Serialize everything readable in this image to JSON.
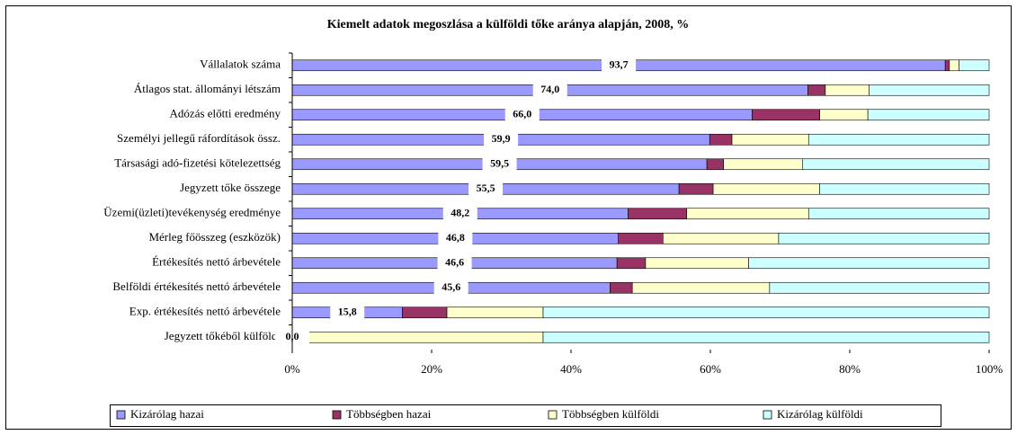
{
  "chart_data": {
    "type": "bar",
    "orientation": "horizontal",
    "stacked": true,
    "title": "Kiemelt adatok megoszlása a külföldi tőke aránya alapján, 2008, %",
    "categories": [
      "Vállalatok száma",
      "Átlagos stat. állományi létszám",
      "Adózás előtti eredmény",
      "Személyi jellegű ráfordítások össz.",
      "Társasági adó-fizetési kötelezettség",
      "Jegyzett tőke összege",
      "Üzemi(üzleti)tevékenység eredménye",
      "Mérleg főösszeg (eszközök)",
      "Értékesítés nettó árbevétele",
      "Belföldi értékesítés nettó árbevétele",
      "Exp. értékesítés nettó árbevétele",
      "Jegyzett tőkéből külföldi"
    ],
    "series": [
      {
        "name": "Kizárólag hazai",
        "color": "#9999ff",
        "values": [
          93.7,
          74.0,
          66.0,
          59.9,
          59.5,
          55.5,
          48.2,
          46.8,
          46.6,
          45.6,
          15.8,
          0.0
        ],
        "value_labels": [
          "93,7",
          "74,0",
          "66,0",
          "59,9",
          "59,5",
          "55,5",
          "48,2",
          "46,8",
          "46,6",
          "45,6",
          "15,8",
          "0,0"
        ]
      },
      {
        "name": "Többségben hazai",
        "color": "#993366",
        "values": [
          0.6,
          2.5,
          9.7,
          3.2,
          2.4,
          4.9,
          8.4,
          6.4,
          4.1,
          3.2,
          6.4,
          0
        ]
      },
      {
        "name": "Többségben külföldi",
        "color": "#ffffcc",
        "values": [
          1.4,
          6.3,
          6.9,
          11.0,
          11.3,
          15.3,
          17.5,
          16.6,
          14.8,
          19.7,
          13.8,
          36.0
        ]
      },
      {
        "name": "Kizárólag külföldi",
        "color": "#ccffff",
        "values": [
          4.3,
          17.2,
          17.4,
          25.9,
          26.8,
          24.3,
          25.9,
          30.2,
          34.5,
          31.5,
          64.0,
          64.0
        ]
      }
    ],
    "xlim": [
      0,
      100
    ],
    "xticks": [
      {
        "value": 0,
        "label": "0%"
      },
      {
        "value": 20,
        "label": "20%"
      },
      {
        "value": 40,
        "label": "40%"
      },
      {
        "value": 60,
        "label": "60%"
      },
      {
        "value": 80,
        "label": "80%"
      },
      {
        "value": 100,
        "label": "100%"
      }
    ],
    "legend": "bottom"
  }
}
